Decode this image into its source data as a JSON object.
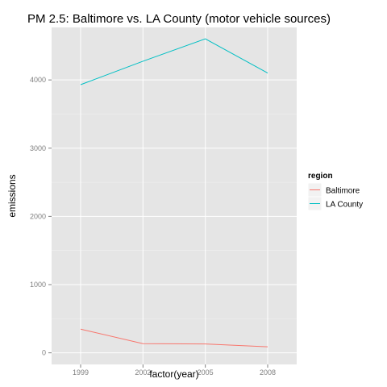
{
  "chart_data": {
    "type": "line",
    "title": "PM 2.5: Baltimore vs. LA County (motor vehicle sources)",
    "xlabel": "factor(year)",
    "ylabel": "emissions",
    "categories": [
      "1999",
      "2002",
      "2005",
      "2008"
    ],
    "y_ticks": [
      0,
      1000,
      2000,
      3000,
      4000
    ],
    "ylim": [
      -170,
      4770
    ],
    "grid": true,
    "legend": {
      "title": "region",
      "placement": "right"
    },
    "series": [
      {
        "name": "Baltimore",
        "color": "#F8766D",
        "values": [
          347,
          134,
          130,
          88
        ]
      },
      {
        "name": "LA County",
        "color": "#00BFC4",
        "values": [
          3931,
          4274,
          4602,
          4101
        ]
      }
    ],
    "colors": {
      "panel_background": "#E5E5E5",
      "grid_major": "#FFFFFF",
      "grid_minor": "#F2F2F2",
      "tick_text": "#7F7F7F"
    }
  }
}
